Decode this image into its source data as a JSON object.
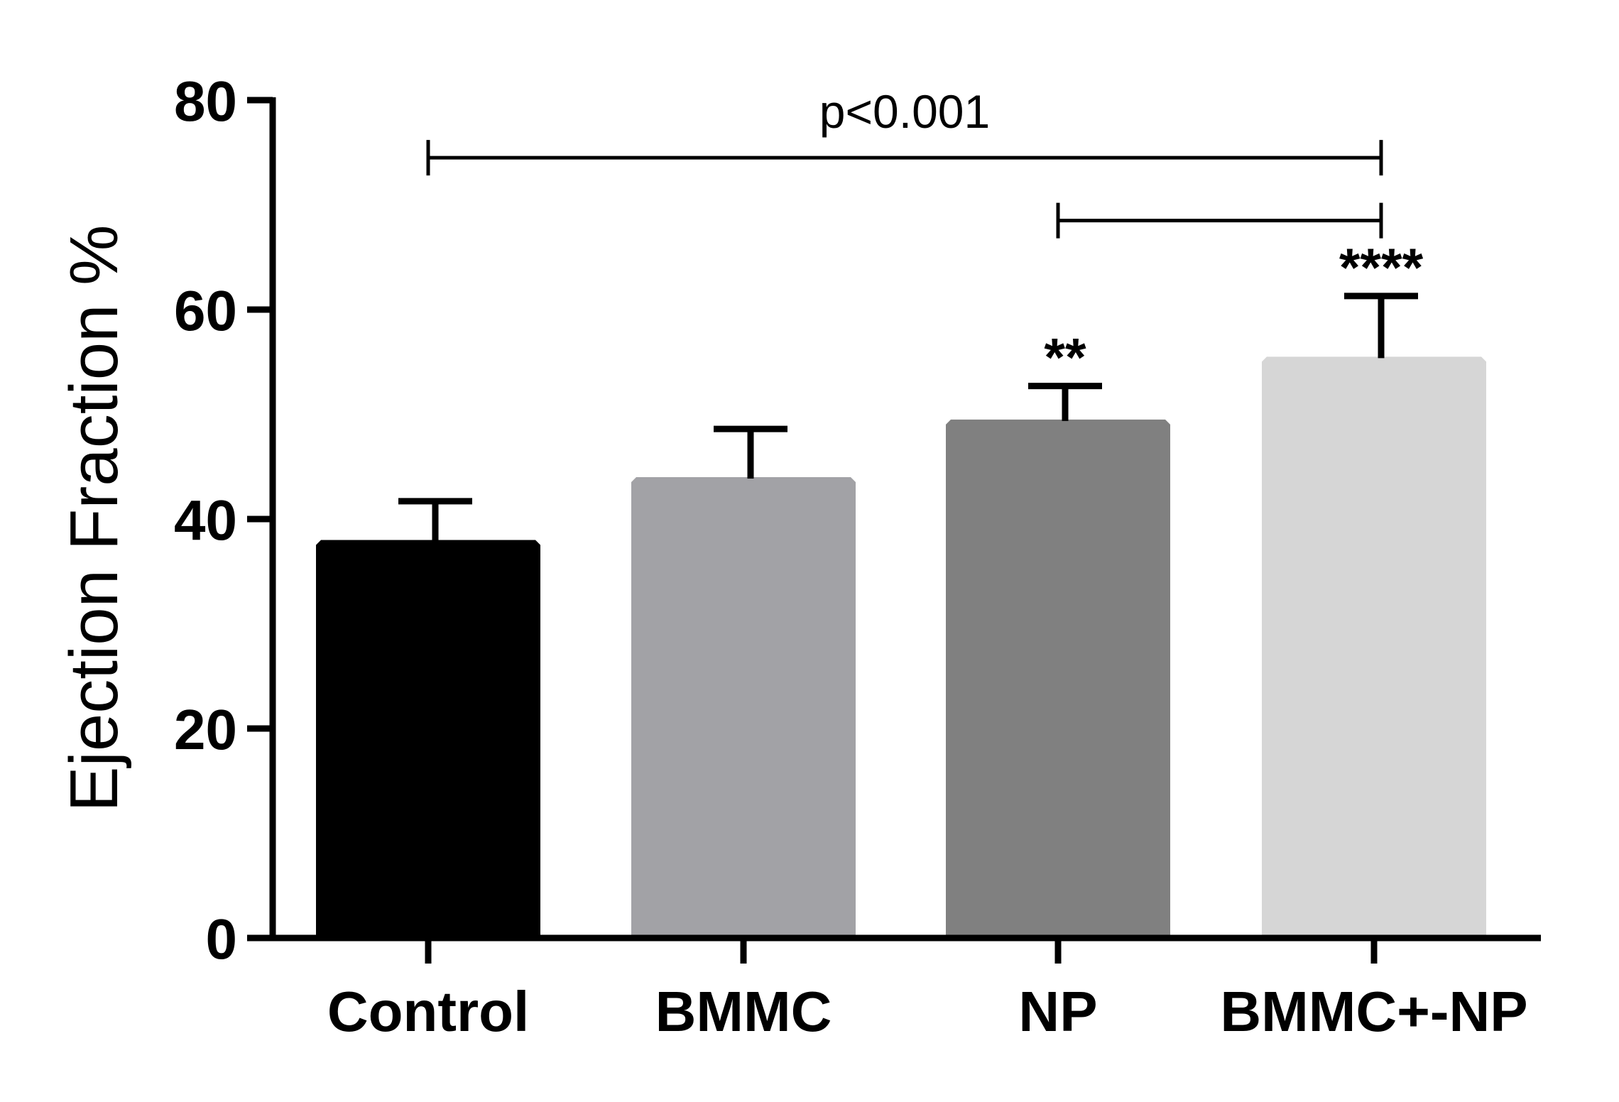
{
  "chart_data": {
    "type": "bar",
    "title": "",
    "xlabel": "",
    "ylabel": "Ejection Fraction %",
    "ylim": [
      0,
      80
    ],
    "yticks": [
      0,
      20,
      40,
      60,
      80
    ],
    "ytick_labels": [
      "0",
      "20",
      "40",
      "60",
      "80"
    ],
    "categories": [
      "Control",
      "BMMC",
      "NP",
      "BMMC+-NP"
    ],
    "values": [
      38,
      44,
      49.5,
      55.5
    ],
    "errors": [
      3.7,
      4.6,
      3.2,
      5.8
    ],
    "colors": [
      "#000000",
      "#a2a2a6",
      "#808080",
      "#d6d6d6"
    ],
    "significance": [
      "",
      "",
      "**",
      "****"
    ],
    "brackets": [
      {
        "from": "Control",
        "to": "BMMC+-NP",
        "y": 74.5,
        "label": "p<0.001"
      },
      {
        "from": "NP",
        "to": "BMMC+-NP",
        "y": 68.5,
        "label": ""
      }
    ],
    "grid": false,
    "legend": "none"
  }
}
